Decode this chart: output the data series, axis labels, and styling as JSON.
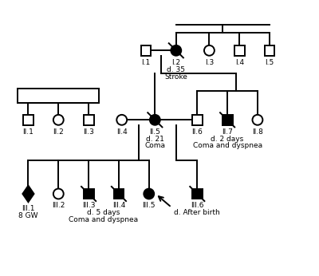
{
  "figsize": [
    4.0,
    3.46
  ],
  "dpi": 100,
  "bg_color": "#ffffff",
  "xlim": [
    0,
    10
  ],
  "ylim": [
    0,
    9
  ],
  "fs": 6.5,
  "lw": 1.4,
  "sz": 0.17
}
